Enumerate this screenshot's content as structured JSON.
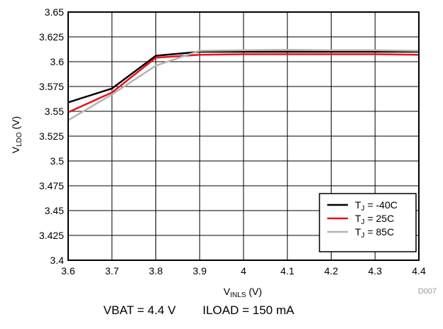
{
  "chart_data": {
    "type": "line",
    "xlabel": {
      "main": "V",
      "sub": "INLS",
      "unit": " (V)"
    },
    "ylabel": {
      "main": "V",
      "sub": "LDO",
      "unit": " (V)"
    },
    "xlim": [
      3.6,
      4.4
    ],
    "ylim": [
      3.4,
      3.65
    ],
    "x_ticks": [
      "3.6",
      "3.7",
      "3.8",
      "3.9",
      "4",
      "4.1",
      "4.2",
      "4.3",
      "4.4"
    ],
    "y_ticks": [
      "3.4",
      "3.425",
      "3.45",
      "3.475",
      "3.5",
      "3.525",
      "3.55",
      "3.575",
      "3.6",
      "3.625",
      "3.65"
    ],
    "grid": true,
    "legend_position": "bottom-right",
    "series": [
      {
        "label_main": "T",
        "label_sub": "J",
        "label_rest": " = -40C",
        "color": "#000000",
        "x": [
          3.6,
          3.7,
          3.8,
          3.9,
          4.0,
          4.1,
          4.2,
          4.3,
          4.4
        ],
        "y": [
          3.559,
          3.573,
          3.606,
          3.61,
          3.61,
          3.61,
          3.61,
          3.61,
          3.61
        ]
      },
      {
        "label_main": "T",
        "label_sub": "J",
        "label_rest": " = 25C",
        "color": "#e8111b",
        "x": [
          3.6,
          3.7,
          3.8,
          3.9,
          4.0,
          4.1,
          4.2,
          4.3,
          4.4
        ],
        "y": [
          3.549,
          3.569,
          3.604,
          3.607,
          3.6075,
          3.6075,
          3.6075,
          3.6075,
          3.607
        ]
      },
      {
        "label_main": "T",
        "label_sub": "J",
        "label_rest": " = 85C",
        "color": "#b4b4b4",
        "x": [
          3.6,
          3.7,
          3.8,
          3.9,
          4.0,
          4.1,
          4.2,
          4.3,
          4.4
        ],
        "y": [
          3.541,
          3.567,
          3.596,
          3.611,
          3.6115,
          3.612,
          3.6115,
          3.6115,
          3.611
        ]
      }
    ]
  },
  "figure_id": "D007",
  "caption": {
    "vbat": "VBAT = 4.4 V",
    "iload": "ILOAD = 150 mA"
  }
}
